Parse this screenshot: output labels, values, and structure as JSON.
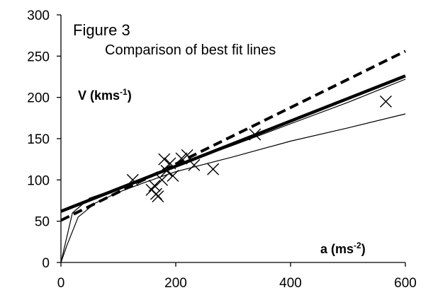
{
  "chart_data": {
    "type": "scatter",
    "title": "Figure 3",
    "subtitle": "Comparison of best fit lines",
    "ylabel": {
      "main": "V (kms",
      "sup": "-1",
      "close": ")"
    },
    "xlabel": {
      "main": "a  (ms",
      "sup": "-2",
      "close": ")"
    },
    "xlim": [
      0,
      600
    ],
    "ylim": [
      0,
      300
    ],
    "x_ticks": [
      0,
      200,
      400,
      600
    ],
    "y_ticks": [
      0,
      50,
      100,
      150,
      200,
      250,
      300
    ],
    "x_tick_labels": [
      "0",
      "200",
      "400",
      "600"
    ],
    "y_tick_labels": [
      "0",
      "50",
      "100",
      "150",
      "200",
      "250",
      "300"
    ],
    "grid": false,
    "legend": "none",
    "marker": "x",
    "colors": {
      "ink": "#000000",
      "background": "#ffffff"
    },
    "points": [
      {
        "x": 125,
        "y": 100
      },
      {
        "x": 158,
        "y": 88
      },
      {
        "x": 163,
        "y": 93
      },
      {
        "x": 166,
        "y": 83
      },
      {
        "x": 169,
        "y": 80
      },
      {
        "x": 176,
        "y": 100
      },
      {
        "x": 180,
        "y": 125
      },
      {
        "x": 184,
        "y": 111
      },
      {
        "x": 190,
        "y": 120
      },
      {
        "x": 195,
        "y": 105
      },
      {
        "x": 210,
        "y": 126
      },
      {
        "x": 220,
        "y": 130
      },
      {
        "x": 232,
        "y": 118
      },
      {
        "x": 265,
        "y": 113
      },
      {
        "x": 338,
        "y": 155
      },
      {
        "x": 566,
        "y": 195
      }
    ],
    "fit_lines": [
      {
        "style": "solid-bold",
        "kind": "linear",
        "points": [
          [
            0,
            62
          ],
          [
            600,
            226
          ]
        ]
      },
      {
        "style": "dashed-bold",
        "kind": "linear",
        "points": [
          [
            0,
            51
          ],
          [
            600,
            256
          ]
        ]
      },
      {
        "style": "thin",
        "kind": "power",
        "points": [
          [
            0,
            0
          ],
          [
            5,
            15
          ],
          [
            20,
            60
          ],
          [
            50,
            78
          ],
          [
            100,
            90
          ],
          [
            150,
            104
          ],
          [
            200,
            117
          ],
          [
            300,
            142
          ],
          [
            400,
            168
          ],
          [
            500,
            194
          ],
          [
            600,
            222
          ]
        ]
      },
      {
        "style": "thin",
        "kind": "power",
        "points": [
          [
            0,
            0
          ],
          [
            10,
            20
          ],
          [
            30,
            55
          ],
          [
            60,
            72
          ],
          [
            100,
            85
          ],
          [
            150,
            98
          ],
          [
            200,
            110
          ],
          [
            300,
            128
          ],
          [
            400,
            147
          ],
          [
            500,
            163
          ],
          [
            600,
            180
          ]
        ]
      }
    ]
  }
}
